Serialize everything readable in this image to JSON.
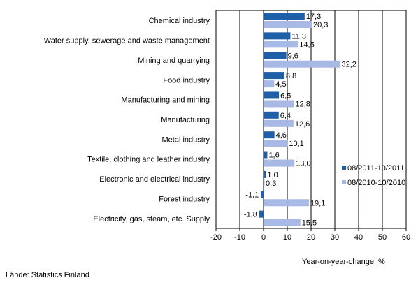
{
  "source_note": "Lähde: Statistics Finland",
  "chart_data": {
    "type": "bar",
    "orientation": "horizontal",
    "categories": [
      "Chemical industry",
      "Water supply, sewerage and waste management",
      "Mining and quarrying",
      "Food industry",
      "Manufacturing and mining",
      "Manufacturing",
      "Metal industry",
      "Textile, clothing and leather industry",
      "Electronic and electrical industry",
      "Forest industry",
      "Electricity, gas, steam, etc. Supply"
    ],
    "series": [
      {
        "name": "08/2011-10/2011",
        "color": "#1f5fa8",
        "values": [
          17.3,
          11.3,
          9.6,
          8.8,
          6.5,
          6.4,
          4.6,
          1.6,
          1.0,
          -1.1,
          -1.8
        ],
        "labels": [
          "17,3",
          "11,3",
          "9,6",
          "8,8",
          "6,5",
          "6,4",
          "4,6",
          "1,6",
          "1,0",
          "-1,1",
          "-1,8"
        ]
      },
      {
        "name": "08/2010-10/2010",
        "color": "#a9b9e6",
        "values": [
          20.3,
          14.5,
          32.2,
          4.5,
          12.8,
          12.6,
          10.1,
          13.0,
          0.3,
          19.1,
          15.5
        ],
        "labels": [
          "20,3",
          "14,5",
          "32,2",
          "4,5",
          "12,8",
          "12,6",
          "10,1",
          "13,0",
          "0,3",
          "19,1",
          "15,5"
        ]
      }
    ],
    "xlim": [
      -20,
      60
    ],
    "xticks": [
      -20,
      -10,
      0,
      10,
      20,
      30,
      40,
      50,
      60
    ],
    "xlabel": "Year-on-year-change, %",
    "grid": "vertical",
    "legend_position": "right"
  }
}
